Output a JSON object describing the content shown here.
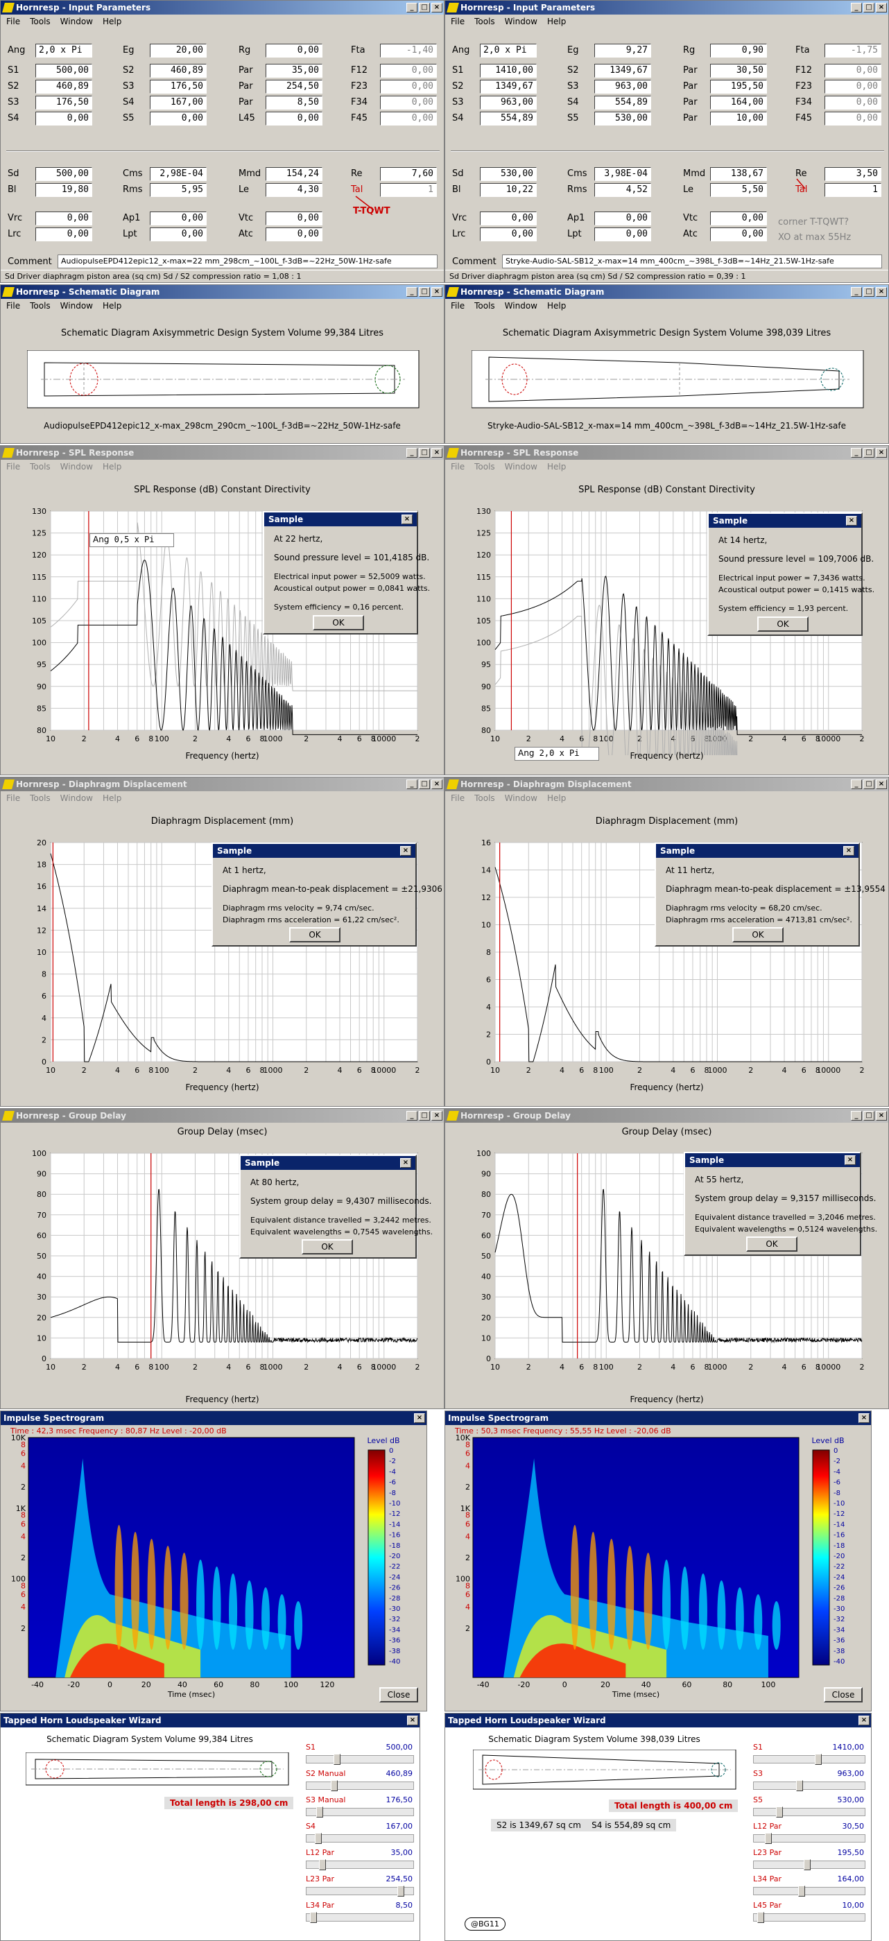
{
  "menu": [
    "File",
    "Tools",
    "Window",
    "Help"
  ],
  "titles": {
    "input": "Hornresp - Input Parameters",
    "schem": "Hornresp - Schematic Diagram",
    "spl": "Hornresp - SPL Response",
    "disp": "Hornresp - Diaphragm Displacement",
    "gd": "Hornresp - Group Delay",
    "spec": "Impulse Spectrogram",
    "wiz": "Tapped Horn Loudspeaker Wizard",
    "sample": "Sample",
    "ok": "OK",
    "close": "Close"
  },
  "labels": {
    "ang": "Ang",
    "eg": "Eg",
    "rg": "Rg",
    "fta": "Fta",
    "s1": "S1",
    "s2": "S2",
    "s3": "S3",
    "s4": "S4",
    "s5": "S5",
    "par": "Par",
    "f12": "F12",
    "f23": "F23",
    "f34": "F34",
    "f45": "F45",
    "l45": "L45",
    "sd": "Sd",
    "cms": "Cms",
    "mmd": "Mmd",
    "re": "Re",
    "bl": "Bl",
    "rms": "Rms",
    "le": "Le",
    "tal": "Tal",
    "vrc": "Vrc",
    "ap1": "Ap1",
    "vtc": "Vtc",
    "lrc": "Lrc",
    "lpt": "Lpt",
    "atc": "Atc",
    "comment": "Comment"
  },
  "left": {
    "ang": "2,0 x Pi",
    "eg": "20,00",
    "rg": "0,00",
    "fta": "-1,40",
    "s1": "500,00",
    "s2v": "460,89",
    "par1": "35,00",
    "f12": "0,00",
    "s2": "460,89",
    "s3v": "176,50",
    "par2": "254,50",
    "f23": "0,00",
    "s3": "176,50",
    "s4v": "167,00",
    "par3": "8,50",
    "f34": "0,00",
    "s4": "0,00",
    "s5v": "0,00",
    "l45": "0,00",
    "f45": "0,00",
    "sd": "500,00",
    "cms": "2,98E-04",
    "mmd": "154,24",
    "re": "7,60",
    "bl": "19,80",
    "rms": "5,95",
    "le": "4,30",
    "tal": "1",
    "vrc": "0,00",
    "ap1": "0,00",
    "vtc": "0,00",
    "lrc": "0,00",
    "lpt": "0,00",
    "atc": "0,00",
    "comment": "AudiopulseEPD412epic12_x-max=22 mm_298cm_~100L_f-3dB=~22Hz_50W-1Hz-safe",
    "status": "Sd   Driver diaphragm piston area  (sq cm)    Sd / S2 compression ratio = 1,08 : 1",
    "note1": "T-TQWT",
    "schem_title": "Schematic Diagram   Axisymmetric Design   System Volume 99,384 Litres",
    "schem_caption": "AudiopulseEPD412epic12_x-max_298cm_290cm_~100L_f-3dB=~22Hz_50W-1Hz-safe",
    "spl_title": "SPL Response (dB)   Constant Directivity",
    "spl_ang": "0,5 x Pi",
    "spl_dlg": [
      "At 22 hertz,",
      "Sound pressure level = 101,4185 dB.",
      "Electrical input power = 52,5009 watts.",
      "Acoustical output power = 0,0841 watts.",
      "System efficiency = 0,16 percent."
    ],
    "disp_title": "Diaphragm Displacement (mm)",
    "disp_dlg": [
      "At 1 hertz,",
      "Diaphragm mean-to-peak displacement = ±21,9306 mm.",
      "Diaphragm rms velocity = 9,74 cm/sec.",
      "Diaphragm rms acceleration = 61,22 cm/sec²."
    ],
    "gd_title": "Group Delay (msec)",
    "gd_dlg": [
      "At 80 hertz,",
      "System group delay = 9,4307 milliseconds.",
      "Equivalent distance travelled = 3,2442 metres.",
      "Equivalent wavelengths = 0,7545 wavelengths."
    ],
    "spec_info": [
      "Time : 42,3 msec",
      "Frequency : 80,87 Hz",
      "Level : -20,00 dB"
    ],
    "wiz_title": "Schematic Diagram   System Volume 99,384 Litres",
    "wiz_total": "Total length is 298,00 cm",
    "wiz_items": [
      {
        "name": "S1",
        "val": "500,00",
        "pos": 0.25
      },
      {
        "name": "S2  Manual",
        "val": "460,89",
        "pos": 0.23
      },
      {
        "name": "S3  Manual",
        "val": "176,50",
        "pos": 0.09
      },
      {
        "name": "S4",
        "val": "167,00",
        "pos": 0.08
      },
      {
        "name": "L12  Par",
        "val": "35,00",
        "pos": 0.12
      },
      {
        "name": "L23  Par",
        "val": "254,50",
        "pos": 0.85
      },
      {
        "name": "L34  Par",
        "val": "8,50",
        "pos": 0.03
      }
    ]
  },
  "right": {
    "ang": "2,0 x Pi",
    "eg": "9,27",
    "rg": "0,90",
    "fta": "-1,75",
    "s1": "1410,00",
    "s2v": "1349,67",
    "par1": "30,50",
    "f12": "0,00",
    "s2": "1349,67",
    "s3v": "963,00",
    "par2": "195,50",
    "f23": "0,00",
    "s3": "963,00",
    "s4v": "554,89",
    "par3": "164,00",
    "f34": "0,00",
    "s4": "554,89",
    "s5v": "530,00",
    "l45": "10,00",
    "f45": "0,00",
    "sd": "530,00",
    "cms": "3,98E-04",
    "mmd": "138,67",
    "re": "3,50",
    "bl": "10,22",
    "rms": "4,52",
    "le": "5,50",
    "tal": "1",
    "vrc": "0,00",
    "ap1": "0,00",
    "vtc": "0,00",
    "lrc": "0,00",
    "lpt": "0,00",
    "atc": "0,00",
    "comment": "Stryke-Audio-SAL-SB12_x-max=14 mm_400cm_~398L_f-3dB=~14Hz_21.5W-1Hz-safe",
    "status": "Sd   Driver diaphragm piston area  (sq cm)    Sd / S2 compression ratio = 0,39 : 1",
    "note1": "corner T-TQWT?",
    "note2": "XO at max 55Hz",
    "schem_title": "Schematic Diagram   Axisymmetric Design   System Volume 398,039 Litres",
    "schem_caption": "Stryke-Audio-SAL-SB12_x-max=14 mm_400cm_~398L_f-3dB=~14Hz_21.5W-1Hz-safe",
    "spl_title": "SPL Response (dB)   Constant Directivity",
    "spl_ang": "2,0 x Pi",
    "spl_dlg": [
      "At 14 hertz,",
      "Sound pressure level = 109,7006 dB.",
      "Electrical input power = 7,3436 watts.",
      "Acoustical output power = 0,1415 watts.",
      "System efficiency = 1,93 percent."
    ],
    "disp_title": "Diaphragm Displacement (mm)",
    "disp_dlg": [
      "At 11 hertz,",
      "Diaphragm mean-to-peak displacement = ±13,9554 mm.",
      "Diaphragm rms velocity = 68,20 cm/sec.",
      "Diaphragm rms acceleration = 4713,81 cm/sec²."
    ],
    "gd_title": "Group Delay (msec)",
    "gd_dlg": [
      "At 55 hertz,",
      "System group delay = 9,3157 milliseconds.",
      "Equivalent distance travelled = 3,2046 metres.",
      "Equivalent wavelengths = 0,5124 wavelengths."
    ],
    "spec_info": [
      "Time : 50,3 msec",
      "Frequency : 55,55 Hz",
      "Level : -20,06 dB"
    ],
    "wiz_title": "Schematic Diagram   System Volume 398,039 Litres",
    "wiz_total": "Total length is 400,00 cm",
    "wiz_s2s4": "S2 is 1349,67 sq cm    S4 is 554,89 sq cm",
    "wiz_badge": "@BG11",
    "wiz_items": [
      {
        "name": "S1",
        "val": "1410,00",
        "pos": 0.55
      },
      {
        "name": "S3",
        "val": "963,00",
        "pos": 0.38
      },
      {
        "name": "S5",
        "val": "530,00",
        "pos": 0.2
      },
      {
        "name": "L12  Par",
        "val": "30,50",
        "pos": 0.1
      },
      {
        "name": "L23  Par",
        "val": "195,50",
        "pos": 0.45
      },
      {
        "name": "L34  Par",
        "val": "164,00",
        "pos": 0.4
      },
      {
        "name": "L45  Par",
        "val": "10,00",
        "pos": 0.03
      }
    ]
  },
  "axes": {
    "xticks": [
      "10",
      "2",
      "4",
      "6",
      "8",
      "100",
      "2",
      "4",
      "6",
      "8",
      "1000",
      "2",
      "4",
      "6",
      "8",
      "10000",
      "2"
    ],
    "xlabel": "Frequency (hertz)",
    "spl_y": [
      "130",
      "125",
      "120",
      "115",
      "110",
      "105",
      "100",
      "95",
      "90",
      "85",
      "80"
    ],
    "disp_y_l": [
      "20",
      "18",
      "16",
      "14",
      "12",
      "10",
      "8",
      "6",
      "4",
      "2",
      "0"
    ],
    "disp_y_r": [
      "16",
      "14",
      "12",
      "10",
      "8",
      "6",
      "4",
      "2",
      "0"
    ],
    "gd_y": [
      "100",
      "90",
      "80",
      "70",
      "60",
      "50",
      "40",
      "30",
      "20",
      "10",
      "0"
    ],
    "spec_y": [
      "10K",
      "8",
      "6",
      "4",
      "2",
      "1K",
      "8",
      "6",
      "4",
      "2",
      "100",
      "8",
      "6",
      "4",
      "2"
    ],
    "spec_x_l": [
      "-40",
      "-20",
      "0",
      "20",
      "40",
      "60",
      "80",
      "100",
      "120"
    ],
    "spec_x_r": [
      "-40",
      "-20",
      "0",
      "20",
      "40",
      "60",
      "80",
      "100"
    ],
    "spec_xlabel": "Time (msec)",
    "level": "Level   dB",
    "level_ticks": [
      "0",
      "-2",
      "-4",
      "-6",
      "-8",
      "-10",
      "-12",
      "-14",
      "-16",
      "-18",
      "-20",
      "-22",
      "-24",
      "-26",
      "-28",
      "-30",
      "-32",
      "-34",
      "-36",
      "-38",
      "-40"
    ]
  }
}
